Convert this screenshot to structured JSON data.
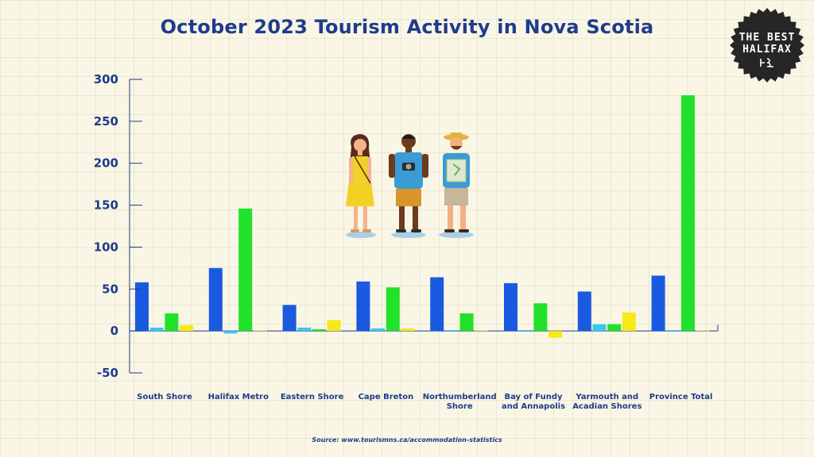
{
  "title": "October 2023 Tourism Activity in Nova Scotia",
  "logo": {
    "line1": "THE BEST",
    "line2": "HALIFAX"
  },
  "source": "Source: www.tourismns.ca/accommodation-statistics",
  "colors": {
    "title": "#1f3b8c",
    "series": [
      "#1a5ae0",
      "#38c8ef",
      "#22e12a",
      "#f7e81a"
    ],
    "axis": "#1f3b8c",
    "background": "#f9f6e6",
    "logo_badge": "#262626"
  },
  "icons": [
    "traveler-woman-icon",
    "traveler-photographer-icon",
    "traveler-map-icon"
  ],
  "chart_data": {
    "type": "bar",
    "categories": [
      "South Shore",
      "Halifax Metro",
      "Eastern Shore",
      "Cape Breton",
      "Northumberland Shore",
      "Bay of Fundy and Annapolis",
      "Yarmouth and Acadian Shores",
      "Province Total"
    ],
    "series": [
      {
        "values": [
          58,
          75,
          31,
          59,
          64,
          57,
          47,
          66
        ]
      },
      {
        "values": [
          4,
          -3,
          4,
          3,
          1,
          1,
          8,
          1
        ]
      },
      {
        "values": [
          21,
          146,
          2,
          52,
          21,
          33,
          8,
          281
        ]
      },
      {
        "values": [
          7,
          0.5,
          13,
          3,
          0.5,
          -8,
          22,
          0.5
        ]
      }
    ],
    "ylim": [
      -50,
      300
    ],
    "yticks": [
      -50,
      0,
      50,
      100,
      150,
      200,
      250,
      300
    ],
    "ytick_labels": [
      "-50",
      "0",
      "50",
      "100",
      "150",
      "200",
      "250",
      "300"
    ],
    "xlabel": "",
    "ylabel": "",
    "grid": false,
    "legend": "none"
  }
}
